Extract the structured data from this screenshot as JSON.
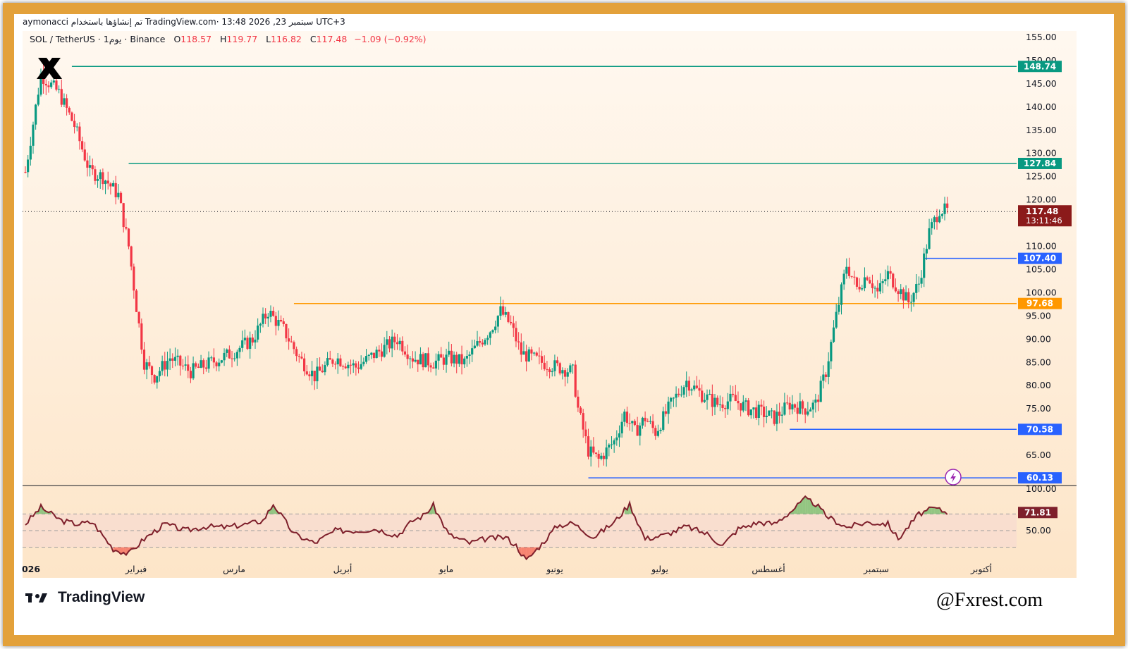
{
  "header": {
    "byline": "aymonacci تم إنشاؤها باستخدام TradingView.com· 13:48 2026 ,23 سبتمبر UTC+3"
  },
  "symbol": {
    "name": "SOL / TetherUS · 1يوم · Binance",
    "open_label": "O",
    "open": "118.57",
    "high_label": "H",
    "high": "119.77",
    "low_label": "L",
    "low": "116.82",
    "close_label": "C",
    "close": "117.48",
    "change": "−1.09 (−0.92%)"
  },
  "footer": {
    "brand": "TradingView",
    "watermark": "@Fxrest.com"
  },
  "colors": {
    "frame": "#e3a13a",
    "bull": "#089981",
    "bear": "#f23645",
    "teal_line": "#089981",
    "orange_line": "#ff9800",
    "blue_line": "#2962ff",
    "rsi_line": "#7e1f2b",
    "price_badge": "#8b1a1a"
  },
  "chart_data": [
    {
      "type": "candlestick",
      "interval": "1D",
      "ylim": [
        60,
        155
      ],
      "y_ticks": [
        "155.00",
        "150.00",
        "145.00",
        "140.00",
        "135.00",
        "130.00",
        "125.00",
        "120.00",
        "110.00",
        "105.00",
        "100.00",
        "95.00",
        "90.00",
        "85.00",
        "80.00",
        "75.00",
        "65.00"
      ],
      "x_ticks": [
        "026",
        "فبراير",
        "مارس",
        "أبريل",
        "مايو",
        "يونيو",
        "يوليو",
        "أغسطس",
        "سبتمبر",
        "أكتوبر"
      ],
      "current_price": "117.48",
      "countdown": "13:11:46",
      "levels": [
        {
          "value": 148.74,
          "label": "148.74",
          "kind": "teal"
        },
        {
          "value": 127.84,
          "label": "127.84",
          "kind": "teal"
        },
        {
          "value": 107.4,
          "label": "107.40",
          "kind": "blue"
        },
        {
          "value": 97.68,
          "label": "97.68",
          "kind": "orange"
        },
        {
          "value": 70.58,
          "label": "70.58",
          "kind": "blue"
        },
        {
          "value": 60.13,
          "label": "60.13",
          "kind": "blue"
        }
      ],
      "trend_path": [
        [
          0,
          126
        ],
        [
          6,
          147
        ],
        [
          13,
          143
        ],
        [
          19,
          136
        ],
        [
          25,
          126
        ],
        [
          30,
          125
        ],
        [
          36,
          121
        ],
        [
          40,
          110
        ],
        [
          43,
          97
        ],
        [
          46,
          85
        ],
        [
          50,
          82
        ],
        [
          56,
          86
        ],
        [
          64,
          83
        ],
        [
          72,
          85
        ],
        [
          80,
          87
        ],
        [
          88,
          90
        ],
        [
          94,
          96
        ],
        [
          100,
          92
        ],
        [
          106,
          86
        ],
        [
          112,
          82
        ],
        [
          120,
          86
        ],
        [
          128,
          84
        ],
        [
          136,
          87
        ],
        [
          144,
          90
        ],
        [
          150,
          86
        ],
        [
          158,
          85
        ],
        [
          164,
          86
        ],
        [
          170,
          85
        ],
        [
          174,
          88
        ],
        [
          180,
          92
        ],
        [
          184,
          96
        ],
        [
          188,
          93
        ],
        [
          192,
          87
        ],
        [
          200,
          85
        ],
        [
          206,
          84
        ],
        [
          212,
          83
        ],
        [
          214,
          75
        ],
        [
          218,
          66
        ],
        [
          222,
          64
        ],
        [
          228,
          68
        ],
        [
          232,
          74
        ],
        [
          236,
          70
        ],
        [
          240,
          73
        ],
        [
          244,
          70
        ],
        [
          250,
          76
        ],
        [
          256,
          81
        ],
        [
          262,
          78
        ],
        [
          268,
          76
        ],
        [
          274,
          77
        ],
        [
          280,
          75
        ],
        [
          286,
          74
        ],
        [
          290,
          73
        ],
        [
          296,
          76
        ],
        [
          302,
          75
        ],
        [
          306,
          76
        ],
        [
          310,
          83
        ],
        [
          314,
          95
        ],
        [
          318,
          106
        ],
        [
          322,
          101
        ],
        [
          326,
          104
        ],
        [
          330,
          100
        ],
        [
          334,
          104
        ],
        [
          338,
          101
        ],
        [
          342,
          98
        ],
        [
          346,
          102
        ],
        [
          350,
          113
        ],
        [
          354,
          118
        ],
        [
          357,
          117.5
        ]
      ],
      "rsi": {
        "ylim": [
          0,
          100
        ],
        "y_ticks": [
          "100.00",
          "50.00"
        ],
        "overbought": 70,
        "oversold": 30,
        "value_label": "71.81",
        "path": [
          [
            0,
            58
          ],
          [
            6,
            78
          ],
          [
            14,
            62
          ],
          [
            20,
            58
          ],
          [
            26,
            60
          ],
          [
            34,
            28
          ],
          [
            40,
            22
          ],
          [
            46,
            40
          ],
          [
            54,
            58
          ],
          [
            62,
            50
          ],
          [
            70,
            55
          ],
          [
            78,
            54
          ],
          [
            86,
            58
          ],
          [
            92,
            62
          ],
          [
            96,
            82
          ],
          [
            104,
            46
          ],
          [
            112,
            35
          ],
          [
            120,
            50
          ],
          [
            128,
            50
          ],
          [
            136,
            52
          ],
          [
            144,
            44
          ],
          [
            150,
            62
          ],
          [
            154,
            68
          ],
          [
            158,
            80
          ],
          [
            164,
            45
          ],
          [
            172,
            35
          ],
          [
            178,
            40
          ],
          [
            186,
            42
          ],
          [
            190,
            32
          ],
          [
            194,
            14
          ],
          [
            200,
            34
          ],
          [
            206,
            56
          ],
          [
            212,
            59
          ],
          [
            220,
            42
          ],
          [
            228,
            60
          ],
          [
            234,
            82
          ],
          [
            240,
            40
          ],
          [
            248,
            45
          ],
          [
            256,
            55
          ],
          [
            264,
            46
          ],
          [
            270,
            32
          ],
          [
            276,
            52
          ],
          [
            284,
            60
          ],
          [
            290,
            58
          ],
          [
            296,
            72
          ],
          [
            302,
            88
          ],
          [
            306,
            82
          ],
          [
            310,
            68
          ],
          [
            318,
            54
          ],
          [
            326,
            60
          ],
          [
            334,
            58
          ],
          [
            338,
            40
          ],
          [
            346,
            70
          ],
          [
            352,
            77
          ],
          [
            357,
            71.8
          ]
        ]
      }
    }
  ]
}
